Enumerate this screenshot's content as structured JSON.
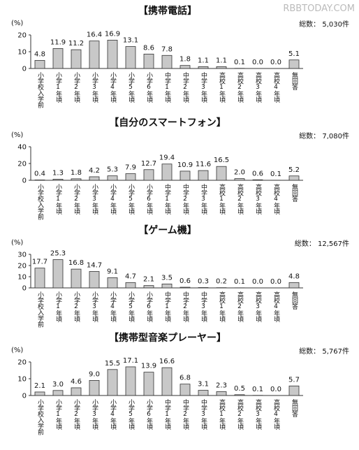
{
  "watermark": "RBBTODAY.COM",
  "chart_data": [
    {
      "type": "bar",
      "title": "【携帯電話】",
      "total_label": "総数： 5,030件",
      "y_label": "(%)",
      "categories": [
        "小学校入学前",
        "小学1年頃",
        "小学2年頃",
        "小学3年頃",
        "小学4年頃",
        "小学5年頃",
        "小学6年頃",
        "中学1年頃",
        "中学2年頃",
        "中学3年頃",
        "高校1年頃",
        "高校2年頃",
        "高校3年頃",
        "高校4年頃",
        "無回答"
      ],
      "values": [
        4.8,
        11.9,
        11.2,
        16.4,
        16.9,
        13.1,
        8.6,
        7.8,
        1.8,
        1.1,
        1.1,
        0.1,
        0,
        0,
        5.1
      ],
      "value_labels": [
        "4.8",
        "11.9",
        "11.2",
        "16.4",
        "16.9",
        "13.1",
        "8.6",
        "7.8",
        "1.8",
        "1.1",
        "1.1",
        "0.1",
        "0.0",
        "0.0",
        "5.1"
      ],
      "color": "#c8c8c8",
      "ylim": [
        0,
        20
      ],
      "yticks": [
        0,
        10,
        20
      ]
    },
    {
      "type": "bar",
      "title": "【自分のスマートフォン】",
      "total_label": "総数： 7,080件",
      "y_label": "(%)",
      "categories": [
        "小学校入学前",
        "小学1年頃",
        "小学2年頃",
        "小学3年頃",
        "小学4年頃",
        "小学5年頃",
        "小学6年頃",
        "中学1年頃",
        "中学2年頃",
        "中学3年頃",
        "高校1年頃",
        "高校2年頃",
        "高校3年頃",
        "高校4年頃",
        "無回答"
      ],
      "values": [
        0.4,
        1.3,
        1.8,
        4.2,
        5.3,
        7.9,
        12.7,
        19.4,
        10.9,
        11.6,
        16.5,
        2.0,
        0.6,
        0.1,
        5.2
      ],
      "value_labels": [
        "0.4",
        "1.3",
        "1.8",
        "4.2",
        "5.3",
        "7.9",
        "12.7",
        "19.4",
        "10.9",
        "11.6",
        "16.5",
        "2.0",
        "0.6",
        "0.1",
        "5.2"
      ],
      "color": "#c8c8c8",
      "ylim": [
        0,
        40
      ],
      "yticks": [
        0,
        20,
        40
      ]
    },
    {
      "type": "bar",
      "title": "【ゲーム機】",
      "total_label": "総数： 12,567件",
      "y_label": "(%)",
      "categories": [
        "小学校入学前",
        "小学1年頃",
        "小学2年頃",
        "小学3年頃",
        "小学4年頃",
        "小学5年頃",
        "小学6年頃",
        "中学1年頃",
        "中学2年頃",
        "中学3年頃",
        "高校1年頃",
        "高校2年頃",
        "高校3年頃",
        "高校4年頃",
        "無回答"
      ],
      "values": [
        17.7,
        25.3,
        16.8,
        14.7,
        9.1,
        4.7,
        2.1,
        3.5,
        0.6,
        0.3,
        0.2,
        0.1,
        0,
        0,
        4.8
      ],
      "value_labels": [
        "17.7",
        "25.3",
        "16.8",
        "14.7",
        "9.1",
        "4.7",
        "2.1",
        "3.5",
        "0.6",
        "0.3",
        "0.2",
        "0.1",
        "0.0",
        "0.0",
        "4.8"
      ],
      "color": "#c8c8c8",
      "ylim": [
        0,
        30
      ],
      "yticks": [
        0,
        10,
        20,
        30
      ]
    },
    {
      "type": "bar",
      "title": "【携帯型音楽プレーヤー】",
      "total_label": "総数： 5,767件",
      "y_label": "(%)",
      "categories": [
        "小学校入学前",
        "小学1年頃",
        "小学2年頃",
        "小学3年頃",
        "小学4年頃",
        "小学5年頃",
        "小学6年頃",
        "中学1年頃",
        "中学2年頃",
        "中学3年頃",
        "高校1年頃",
        "高校2年頃",
        "高校3年頃",
        "高校4年頃",
        "無回答"
      ],
      "values": [
        2.1,
        3.0,
        4.6,
        9.0,
        15.5,
        17.1,
        13.9,
        16.6,
        6.8,
        3.1,
        2.3,
        0.5,
        0.1,
        0,
        5.7
      ],
      "value_labels": [
        "2.1",
        "3.0",
        "4.6",
        "9.0",
        "15.5",
        "17.1",
        "13.9",
        "16.6",
        "6.8",
        "3.1",
        "2.3",
        "0.5",
        "0.1",
        "0.0",
        "5.7"
      ],
      "color": "#c8c8c8",
      "ylim": [
        0,
        20
      ],
      "yticks": [
        0,
        10,
        20
      ]
    }
  ]
}
